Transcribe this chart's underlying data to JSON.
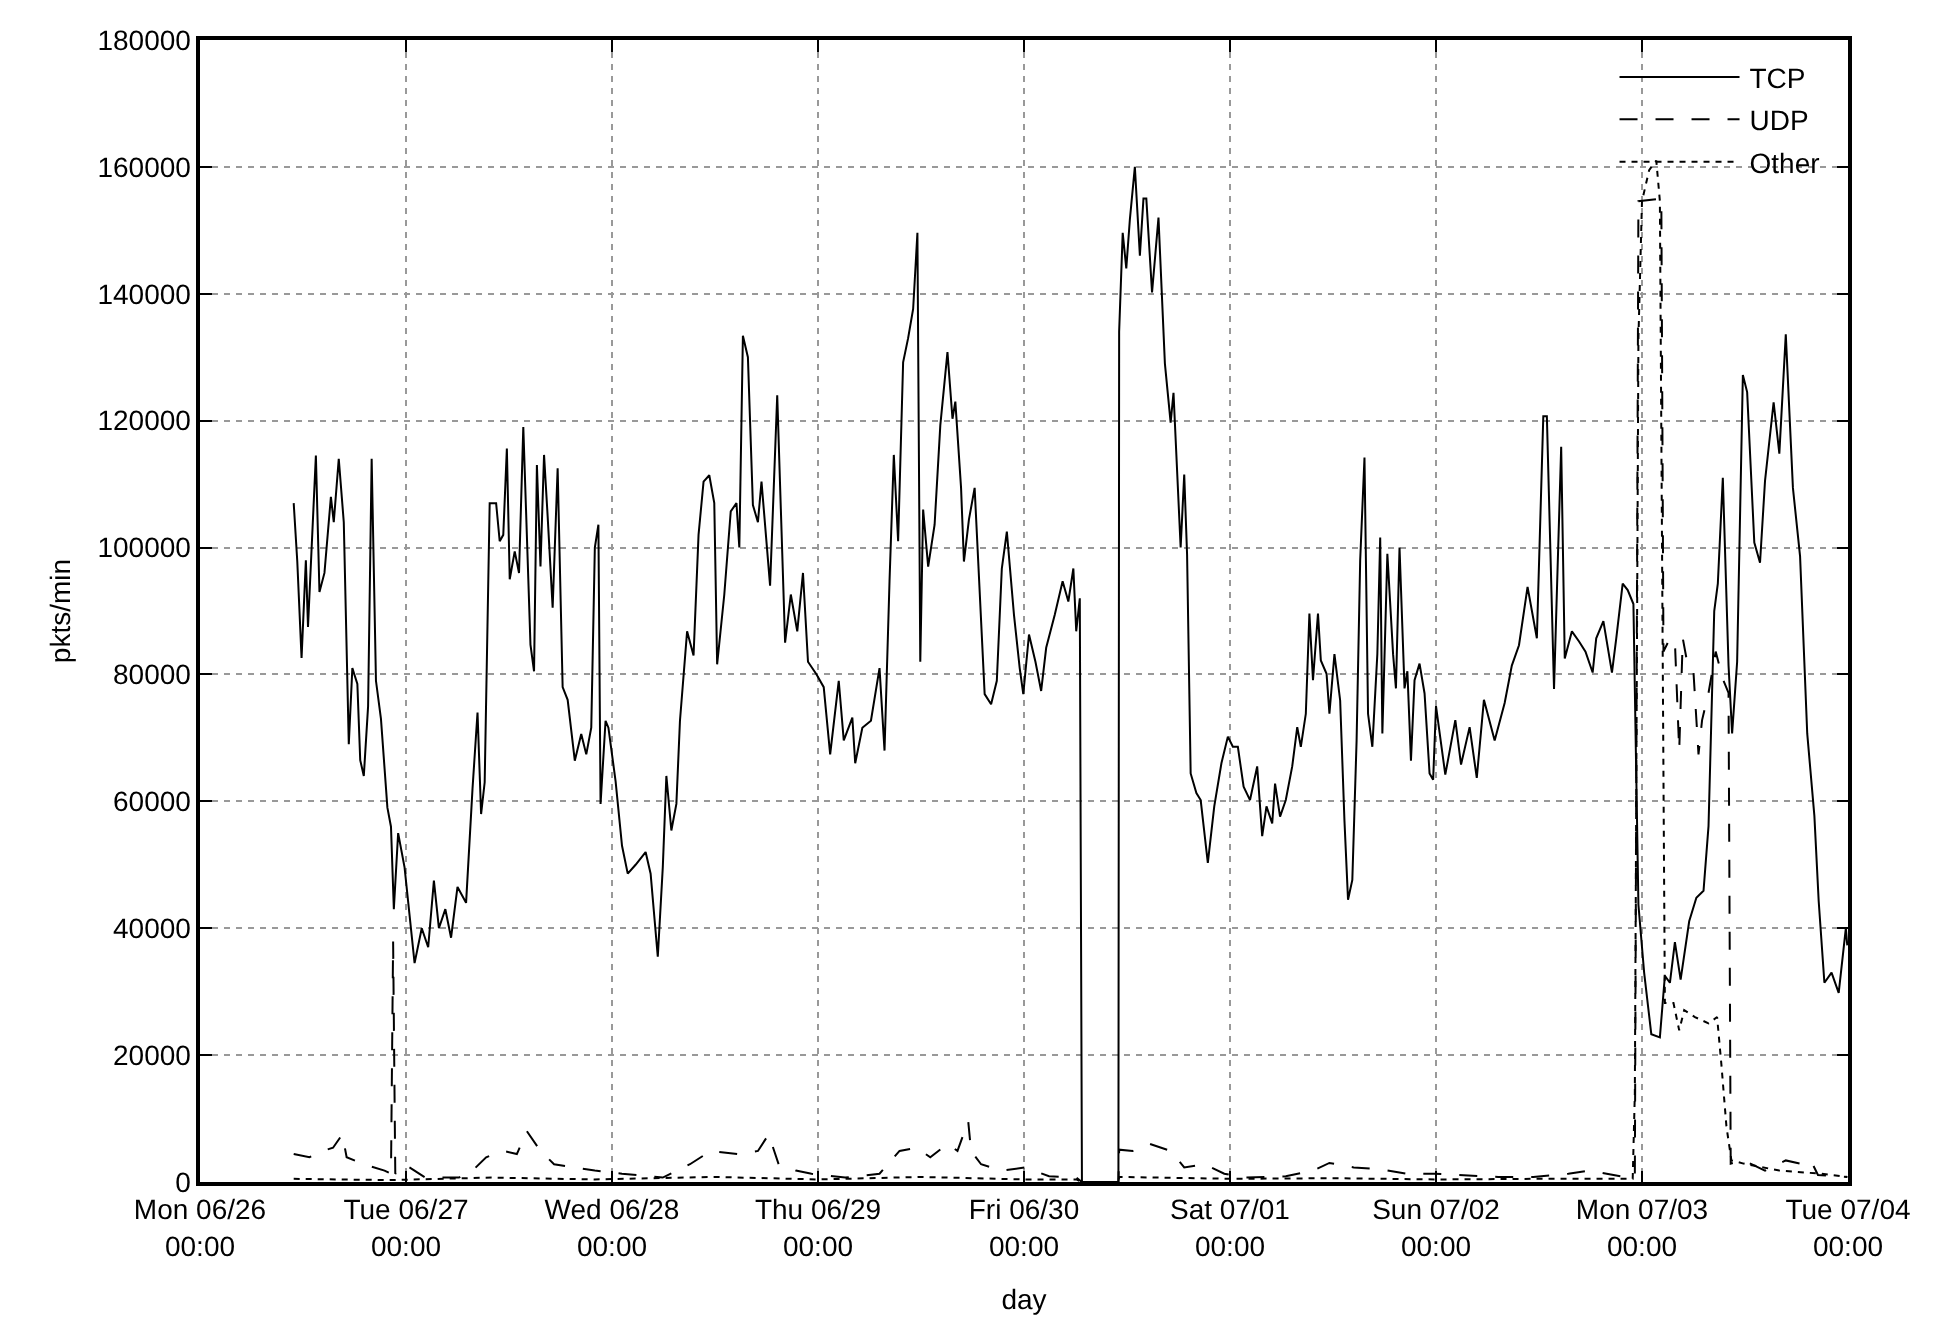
{
  "chart_data": {
    "type": "line",
    "xlabel": "day",
    "ylabel": "pkts/min",
    "legend": "top right",
    "grid": true,
    "xlim": [
      "--06-26T00:00",
      "--07-04T00:00"
    ],
    "xticks": [
      {
        "value": "--06-26T00:00",
        "label": "Mon 06/26\n00:00"
      },
      {
        "value": "--06-27T00:00",
        "label": "Tue 06/27\n00:00"
      },
      {
        "value": "--06-28T00:00",
        "label": "Wed 06/28\n00:00"
      },
      {
        "value": "--06-29T00:00",
        "label": "Thu 06/29\n00:00"
      },
      {
        "value": "--06-30T00:00",
        "label": "Fri 06/30\n00:00"
      },
      {
        "value": "--07-01T00:00",
        "label": "Sat 07/01\n00:00"
      },
      {
        "value": "--07-02T00:00",
        "label": "Sun 07/02\n00:00"
      },
      {
        "value": "--07-03T00:00",
        "label": "Mon 07/03\n00:00"
      },
      {
        "value": "--07-04T00:00",
        "label": "Tue 07/04\n00:00"
      }
    ],
    "ylim": [
      0,
      180000
    ],
    "yticks": [
      0,
      20000,
      40000,
      60000,
      80000,
      100000,
      120000,
      140000,
      160000,
      180000
    ],
    "series": [
      {
        "name": "TCP",
        "color": "#000000",
        "line_style": "solid",
        "x": [
          "--06-26T10:55",
          "--06-26T11:20",
          "--06-26T11:50",
          "--06-26T12:20",
          "--06-26T12:35",
          "--06-26T13:30",
          "--06-26T13:55",
          "--06-26T14:30",
          "--06-26T15:15",
          "--06-26T15:35",
          "--06-26T16:10",
          "--06-26T16:45",
          "--06-26T17:20",
          "--06-26T17:45",
          "--06-26T18:20",
          "--06-26T18:40",
          "--06-26T19:05",
          "--06-26T19:35",
          "--06-26T20:00",
          "--06-26T20:30",
          "--06-26T21:05",
          "--06-26T21:50",
          "--06-26T22:15",
          "--06-26T22:35",
          "--06-26T23:05",
          "--06-26T23:50",
          "--06-27T01:00",
          "--06-27T01:50",
          "--06-27T02:35",
          "--06-27T03:15",
          "--06-27T03:50",
          "--06-27T04:35",
          "--06-27T05:15",
          "--06-27T06:00",
          "--06-27T07:00",
          "--06-27T07:45",
          "--06-27T08:20",
          "--06-27T08:45",
          "--06-27T09:10",
          "--06-27T09:45",
          "--06-27T10:30",
          "--06-27T10:55",
          "--06-27T11:20",
          "--06-27T11:45",
          "--06-27T12:05",
          "--06-27T12:40",
          "--06-27T13:10",
          "--06-27T13:40",
          "--06-27T14:30",
          "--06-27T14:55",
          "--06-27T15:15",
          "--06-27T15:40",
          "--06-27T16:05",
          "--06-27T16:30",
          "--06-27T17:05",
          "--06-27T17:40",
          "--06-27T18:15",
          "--06-27T18:50",
          "--06-27T19:40",
          "--06-27T20:25",
          "--06-27T21:00",
          "--06-27T21:35",
          "--06-27T22:00",
          "--06-27T22:25",
          "--06-27T22:40",
          "--06-27T23:15",
          "--06-27T23:35",
          "--06-28T00:25",
          "--06-28T01:10",
          "--06-28T01:50",
          "--06-28T02:45",
          "--06-28T03:55",
          "--06-28T04:30",
          "--06-28T05:20",
          "--06-28T05:55",
          "--06-28T06:20",
          "--06-28T06:55",
          "--06-28T07:30",
          "--06-28T07:55",
          "--06-28T08:45",
          "--06-28T09:30",
          "--06-28T10:05",
          "--06-28T10:40",
          "--06-28T11:20",
          "--06-28T11:55",
          "--06-28T12:15",
          "--06-28T13:05",
          "--06-28T13:50",
          "--06-28T14:30",
          "--06-28T14:50",
          "--06-28T15:15",
          "--06-28T15:50",
          "--06-28T16:25",
          "--06-28T17:00",
          "--06-28T17:25",
          "--06-28T18:25",
          "--06-28T19:15",
          "--06-28T20:10",
          "--06-28T20:50",
          "--06-28T21:35",
          "--06-28T22:15",
          "--06-28T22:50",
          "--06-28T23:50",
          "--06-29T00:40",
          "--06-29T01:25",
          "--06-29T02:25",
          "--06-29T03:00",
          "--06-29T04:00",
          "--06-29T04:20",
          "--06-29T05:10",
          "--06-29T06:10",
          "--06-29T07:10",
          "--06-29T07:45",
          "--06-29T08:20",
          "--06-29T08:50",
          "--06-29T09:20",
          "--06-29T09:55",
          "--06-29T10:30",
          "--06-29T11:05",
          "--06-29T11:35",
          "--06-29T11:55",
          "--06-29T12:15",
          "--06-29T12:50",
          "--06-29T13:35",
          "--06-29T14:15",
          "--06-29T15:05",
          "--06-29T15:40",
          "--06-29T16:00",
          "--06-29T16:40",
          "--06-29T17:00",
          "--06-29T17:35",
          "--06-29T18:15",
          "--06-29T19:25",
          "--06-29T20:10",
          "--06-29T20:50",
          "--06-29T21:25",
          "--06-29T22:00",
          "--06-29T22:50",
          "--06-29T23:30",
          "--06-29T23:55",
          "--06-30T00:35",
          "--06-30T01:20",
          "--06-30T02:00",
          "--06-30T02:35",
          "--06-30T03:35",
          "--06-30T04:30",
          "--06-30T05:10",
          "--06-30T05:45",
          "--06-30T06:05",
          "--06-30T06:30",
          "--06-30T06:45",
          "--06-30T11:00",
          "--06-30T11:05",
          "--06-30T11:30",
          "--06-30T11:55",
          "--06-30T12:20",
          "--06-30T12:55",
          "--06-30T13:30",
          "--06-30T13:55",
          "--06-30T14:15",
          "--06-30T14:55",
          "--06-30T15:40",
          "--06-30T16:25",
          "--06-30T17:05",
          "--06-30T17:25",
          "--06-30T18:15",
          "--06-30T18:40",
          "--06-30T19:00",
          "--06-30T19:25",
          "--06-30T20:05",
          "--06-30T20:35",
          "--06-30T21:25",
          "--06-30T22:10",
          "--06-30T23:00",
          "--06-30T23:45",
          "--07-01T00:20",
          "--07-01T00:55",
          "--07-01T01:35",
          "--07-01T02:20",
          "--07-01T03:10",
          "--07-01T03:45",
          "--07-01T04:15",
          "--07-01T04:55",
          "--07-01T05:15",
          "--07-01T05:50",
          "--07-01T06:30",
          "--07-01T07:15",
          "--07-01T07:50",
          "--07-01T08:15",
          "--07-01T08:50",
          "--07-01T09:15",
          "--07-01T09:40",
          "--07-01T10:15",
          "--07-01T10:35",
          "--07-01T11:15",
          "--07-01T11:35",
          "--07-01T12:10",
          "--07-01T12:50",
          "--07-01T13:20",
          "--07-01T13:45",
          "--07-01T14:15",
          "--07-01T14:45",
          "--07-01T15:10",
          "--07-01T15:40",
          "--07-01T16:05",
          "--07-01T16:35",
          "--07-01T17:10",
          "--07-01T17:30",
          "--07-01T17:45",
          "--07-01T18:20",
          "--07-01T19:00",
          "--07-01T19:20",
          "--07-01T19:45",
          "--07-01T20:20",
          "--07-01T20:40",
          "--07-01T21:05",
          "--07-01T21:30",
          "--07-01T22:05",
          "--07-01T22:40",
          "--07-01T23:15",
          "--07-01T23:40",
          "--07-02T00:00",
          "--07-02T01:05",
          "--07-02T02:15",
          "--07-02T02:55",
          "--07-02T03:55",
          "--07-02T04:45",
          "--07-02T05:35",
          "--07-02T06:50",
          "--07-02T08:00",
          "--07-02T08:50",
          "--07-02T09:40",
          "--07-02T10:40",
          "--07-02T11:45",
          "--07-02T12:30",
          "--07-02T12:55",
          "--07-02T13:45",
          "--07-02T14:35",
          "--07-02T15:00",
          "--07-02T15:50",
          "--07-02T16:40",
          "--07-02T17:25",
          "--07-02T18:15",
          "--07-02T18:40",
          "--07-02T19:30",
          "--07-02T20:30",
          "--07-02T21:00",
          "--07-02T21:45",
          "--07-02T22:20",
          "--07-02T23:00",
          "--07-02T23:35",
          "--07-03T00:15",
          "--07-03T01:05",
          "--07-03T02:05",
          "--07-03T02:40",
          "--07-03T03:15",
          "--07-03T03:50",
          "--07-03T04:30",
          "--07-03T05:30",
          "--07-03T06:20",
          "--07-03T07:10",
          "--07-03T07:45",
          "--07-03T08:25",
          "--07-03T08:50",
          "--07-03T09:25",
          "--07-03T10:05",
          "--07-03T10:30",
          "--07-03T11:05",
          "--07-03T11:45",
          "--07-03T12:15",
          "--07-03T13:05",
          "--07-03T13:45",
          "--07-03T14:20",
          "--07-03T15:20",
          "--07-03T16:00",
          "--07-03T16:45",
          "--07-03T17:35",
          "--07-03T18:25",
          "--07-03T19:15",
          "--07-03T20:05",
          "--07-03T20:35",
          "--07-03T21:15",
          "--07-03T22:05",
          "--07-03T22:55",
          "--07-03T23:45",
          "--07-03T23:55"
        ],
        "values": [
          107000,
          97800,
          82600,
          98000,
          87500,
          114500,
          93000,
          96000,
          108000,
          104000,
          114000,
          104000,
          69000,
          81000,
          78500,
          66500,
          64000,
          75000,
          114000,
          79000,
          73000,
          59000,
          56000,
          43000,
          55000,
          49600,
          34500,
          40000,
          37000,
          47500,
          40000,
          43000,
          38500,
          46500,
          44000,
          62000,
          74000,
          58000,
          63000,
          107000,
          107000,
          101000,
          102000,
          115600,
          95000,
          99400,
          96000,
          119000,
          84700,
          80500,
          113000,
          97000,
          114600,
          105000,
          90500,
          112500,
          78000,
          76000,
          66400,
          70600,
          67400,
          71600,
          100000,
          103600,
          59600,
          72700,
          71600,
          63200,
          53000,
          48600,
          50000,
          52000,
          48600,
          35500,
          49600,
          64000,
          55400,
          59600,
          72700,
          86800,
          83000,
          102000,
          110400,
          111400,
          107000,
          81600,
          92600,
          105700,
          107000,
          100000,
          133400,
          130000,
          106700,
          104000,
          110400,
          94000,
          124000,
          85000,
          92600,
          86800,
          96000,
          82000,
          80000,
          78000,
          67400,
          79000,
          69600,
          73200,
          66000,
          71600,
          72700,
          81000,
          68000,
          94700,
          114600,
          101000,
          129200,
          133000,
          137600,
          149600,
          82000,
          106000,
          97000,
          103600,
          119300,
          130800,
          120300,
          123000,
          109400,
          97800,
          104400,
          109400,
          76900,
          75300,
          79000,
          96700,
          102500,
          89400,
          81000,
          76900,
          86300,
          82000,
          77400,
          84200,
          89400,
          94700,
          91500,
          96700,
          86800,
          92000,
          0,
          0,
          134000,
          149600,
          144000,
          151700,
          160000,
          146000,
          155000,
          155000,
          140200,
          152000,
          129000,
          119700,
          124400,
          100000,
          111500,
          98900,
          64400,
          61300,
          60200,
          50300,
          59200,
          66000,
          70200,
          68600,
          68600,
          62300,
          60200,
          65500,
          54500,
          59200,
          56500,
          62800,
          57600,
          60200,
          65500,
          71700,
          68600,
          73800,
          89600,
          79100,
          89600,
          82200,
          80100,
          73800,
          83200,
          75900,
          57000,
          44500,
          47600,
          69600,
          98000,
          114200,
          73800,
          68600,
          83200,
          101600,
          70700,
          99000,
          83200,
          77800,
          100000,
          77800,
          80500,
          66400,
          79100,
          81700,
          77000,
          64400,
          63400,
          75000,
          64200,
          72800,
          65800,
          71700,
          63700,
          76000,
          69600,
          75500,
          81400,
          84600,
          93800,
          85700,
          120700,
          120700,
          77700,
          115900,
          82500,
          86800,
          85200,
          83600,
          80300,
          85700,
          88400,
          80300,
          85700,
          94300,
          93300,
          91100,
          43700,
          33000,
          23300,
          22800,
          32500,
          31400,
          37800,
          31900,
          41100,
          44800,
          45900,
          56100,
          90000,
          94300,
          111000,
          81400,
          70700,
          82000,
          127200,
          124500,
          100800,
          97600,
          110500,
          122900,
          114800,
          133600,
          109400,
          98600,
          70700,
          57700,
          44300,
          31400,
          33000,
          29800,
          40000,
          37300
        ]
      },
      {
        "name": "UDP",
        "color": "#000000",
        "line_style": "dashed",
        "x": [
          "--06-26T10:55",
          "--06-26T12:45",
          "--06-26T14:20",
          "--06-26T15:30",
          "--06-26T16:35",
          "--06-26T17:05",
          "--06-26T19:05",
          "--06-26T21:30",
          "--06-26T22:15",
          "--06-26T22:30",
          "--06-26T22:45",
          "--06-26T23:50",
          "--06-27T02:15",
          "--06-27T06:10",
          "--06-27T07:45",
          "--06-27T09:20",
          "--06-27T11:20",
          "--06-27T12:55",
          "--06-27T14:05",
          "--06-27T15:40",
          "--06-27T17:15",
          "--06-27T19:40",
          "--06-27T22:00",
          "--06-28T01:10",
          "--06-28T05:55",
          "--06-28T09:05",
          "--06-28T11:30",
          "--06-28T14:40",
          "--06-28T17:00",
          "--06-28T18:15",
          "--06-28T19:25",
          "--06-28T21:25",
          "--06-28T23:15",
          "--06-29T03:10",
          "--06-29T07:10",
          "--06-29T09:30",
          "--06-29T11:30",
          "--06-29T13:05",
          "--06-29T15:05",
          "--06-29T16:15",
          "--06-29T17:30",
          "--06-29T17:50",
          "--06-29T19:00",
          "--06-29T21:25",
          "--06-30T00:10",
          "--06-30T02:55",
          "--06-30T06:05",
          "--06-30T06:45",
          "--06-30T11:00",
          "--06-30T11:05",
          "--06-30T12:40",
          "--06-30T14:40",
          "--06-30T17:05",
          "--06-30T18:40",
          "--06-30T21:00",
          "--06-30T23:20",
          "--07-01T01:45",
          "--07-01T06:30",
          "--07-01T09:40",
          "--07-01T11:35",
          "--07-01T14:25",
          "--07-01T17:30",
          "--07-01T20:40",
          "--07-01T23:50",
          "--07-02T07:15",
          "--07-02T11:20",
          "--07-02T15:25",
          "--07-02T17:50",
          "--07-02T21:55",
          "--07-02T23:10",
          "--07-02T23:35",
          "--07-03T02:15",
          "--07-03T02:30",
          "--07-03T03:15",
          "--07-03T03:50",
          "--07-03T04:20",
          "--07-03T04:45",
          "--07-03T05:20",
          "--07-03T06:00",
          "--07-03T06:35",
          "--07-03T07:00",
          "--07-03T07:45",
          "--07-03T08:35",
          "--07-03T09:25",
          "--07-03T10:05",
          "--07-03T10:20",
          "--07-03T11:50",
          "--07-03T14:20",
          "--07-03T16:45",
          "--07-03T18:25",
          "--07-03T19:40",
          "--07-03T20:30",
          "--07-03T23:55"
        ],
        "values": [
          4400,
          3900,
          4900,
          5400,
          7500,
          3900,
          2800,
          1800,
          1300,
          37900,
          1300,
          2800,
          700,
          700,
          1800,
          3900,
          4900,
          4400,
          8000,
          4900,
          2800,
          2300,
          1800,
          1300,
          700,
          2800,
          4900,
          4400,
          4900,
          7500,
          2800,
          1800,
          1300,
          700,
          1300,
          4900,
          5400,
          3900,
          6000,
          4900,
          9600,
          4900,
          2800,
          1800,
          2300,
          900,
          700,
          0,
          0,
          5100,
          4900,
          6000,
          4900,
          2300,
          2800,
          1300,
          700,
          900,
          1800,
          3000,
          2300,
          2000,
          1300,
          1300,
          800,
          800,
          1300,
          1800,
          800,
          800,
          154600,
          155000,
          83600,
          85700,
          85200,
          68000,
          85700,
          81400,
          80300,
          67400,
          72800,
          77100,
          83600,
          79300,
          77100,
          2900,
          3400,
          1800,
          3400,
          2900,
          3400,
          1100,
          800
        ]
      },
      {
        "name": "Other",
        "color": "#000000",
        "line_style": "dotted",
        "x": [
          "--06-26T10:55",
          "--06-26T22:00",
          "--06-27T10:00",
          "--06-27T22:00",
          "--06-28T12:00",
          "--06-29T00:00",
          "--06-29T12:00",
          "--06-30T00:00",
          "--06-30T06:05",
          "--06-30T06:45",
          "--06-30T11:00",
          "--06-30T11:05",
          "--07-01T00:00",
          "--07-01T12:00",
          "--07-02T00:00",
          "--07-02T12:00",
          "--07-02T22:55",
          "--07-02T23:10",
          "--07-02T23:35",
          "--07-03T00:00",
          "--07-03T00:50",
          "--07-03T01:40",
          "--07-03T02:05",
          "--07-03T02:40",
          "--07-03T03:40",
          "--07-03T04:20",
          "--07-03T04:55",
          "--07-03T06:10",
          "--07-03T07:45",
          "--07-03T08:45",
          "--07-03T09:15",
          "--07-03T09:50",
          "--07-03T10:25",
          "--07-03T11:50",
          "--07-03T16:00",
          "--07-03T20:55",
          "--07-03T23:55"
        ],
        "values": [
          500,
          300,
          700,
          400,
          800,
          400,
          800,
          400,
          400,
          0,
          0,
          800,
          500,
          600,
          400,
          500,
          500,
          14000,
          133000,
          154600,
          159500,
          161000,
          154600,
          28200,
          28200,
          23900,
          27100,
          26000,
          25000,
          26000,
          18500,
          8800,
          3400,
          2900,
          1800,
          1300,
          800
        ]
      }
    ]
  }
}
